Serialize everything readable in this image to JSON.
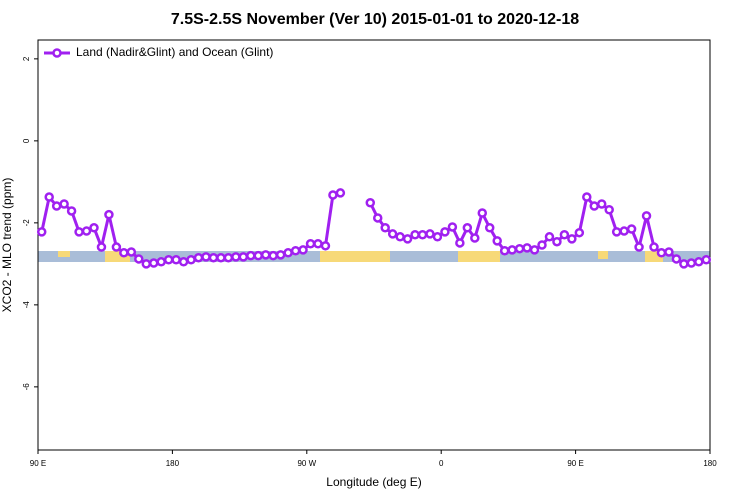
{
  "chart_data": {
    "type": "line",
    "title": "7.5S-2.5S November (Ver 10)   2015-01-01 to 2020-12-18",
    "x_label": "Longitude (deg E)",
    "y_label": "XCO2 - MLO trend (ppm)",
    "legend_position": "top-left",
    "xlim": [
      90,
      540
    ],
    "ylim": [
      -7.54,
      2.46
    ],
    "xticks": [
      {
        "value": 90,
        "label": "90 E"
      },
      180,
      {
        "value": 270,
        "label": "90 W"
      },
      {
        "value": 360,
        "label": "0"
      },
      {
        "value": 450,
        "label": "90 E"
      },
      {
        "value": 540,
        "label": "180"
      }
    ],
    "yticks": [
      2,
      0,
      -2,
      -4,
      -6
    ],
    "x": [
      92.5,
      97.5,
      102.5,
      107.5,
      112.5,
      117.5,
      122.5,
      127.5,
      132.5,
      137.5,
      142.5,
      147.5,
      152.5,
      157.5,
      162.5,
      167.5,
      172.5,
      177.5,
      182.5,
      187.5,
      192.5,
      197.5,
      202.5,
      207.5,
      212.5,
      217.5,
      222.5,
      227.5,
      232.5,
      237.5,
      242.5,
      247.5,
      252.5,
      257.5,
      262.5,
      267.5,
      272.5,
      277.5,
      282.5,
      287.5,
      292.5,
      297.5,
      302.5,
      307.5,
      312.5,
      317.5,
      322.5,
      327.5,
      332.5,
      337.5,
      342.5,
      347.5,
      352.5,
      357.5,
      362.5,
      367.5,
      372.5,
      377.5,
      382.5,
      387.5,
      392.5,
      397.5,
      402.5,
      407.5,
      412.5,
      417.5,
      422.5,
      427.5,
      432.5,
      437.5,
      442.5,
      447.5,
      452.5,
      457.5,
      462.5,
      467.5,
      472.5,
      477.5,
      482.5,
      487.5,
      492.5,
      497.5,
      502.5,
      507.5,
      512.5,
      517.5,
      522.5,
      527.5,
      532.5,
      537.5
    ],
    "series": [
      {
        "name": "Land (Nadir&Glint) and Ocean (Glint)",
        "color": "#a020f0",
        "values": [
          -2.22,
          -1.37,
          -1.59,
          -1.54,
          -1.71,
          -2.22,
          -2.2,
          -2.12,
          -2.59,
          -1.8,
          -2.59,
          -2.73,
          -2.71,
          -2.88,
          -3.0,
          -2.98,
          -2.95,
          -2.9,
          -2.9,
          -2.95,
          -2.9,
          -2.85,
          -2.83,
          -2.85,
          -2.85,
          -2.85,
          -2.83,
          -2.83,
          -2.8,
          -2.8,
          -2.78,
          -2.8,
          -2.78,
          -2.73,
          -2.68,
          -2.66,
          -2.51,
          -2.51,
          -2.56,
          -1.32,
          -1.27,
          null,
          null,
          null,
          -1.51,
          -1.88,
          -2.12,
          -2.27,
          -2.34,
          -2.39,
          -2.29,
          -2.29,
          -2.27,
          -2.34,
          -2.22,
          -2.1,
          -2.49,
          -2.12,
          -2.37,
          -1.76,
          -2.12,
          -2.44,
          -2.68,
          -2.66,
          -2.63,
          -2.61,
          -2.66,
          -2.54,
          -2.34,
          -2.46,
          -2.29,
          -2.39,
          -2.24,
          -1.37,
          -1.59,
          -1.54,
          -1.68,
          -2.22,
          -2.2,
          -2.15,
          -2.59,
          -1.83,
          -2.59,
          -2.73,
          -2.71,
          -2.88,
          -3.0,
          -2.98,
          -2.95,
          -2.9
        ]
      }
    ]
  }
}
